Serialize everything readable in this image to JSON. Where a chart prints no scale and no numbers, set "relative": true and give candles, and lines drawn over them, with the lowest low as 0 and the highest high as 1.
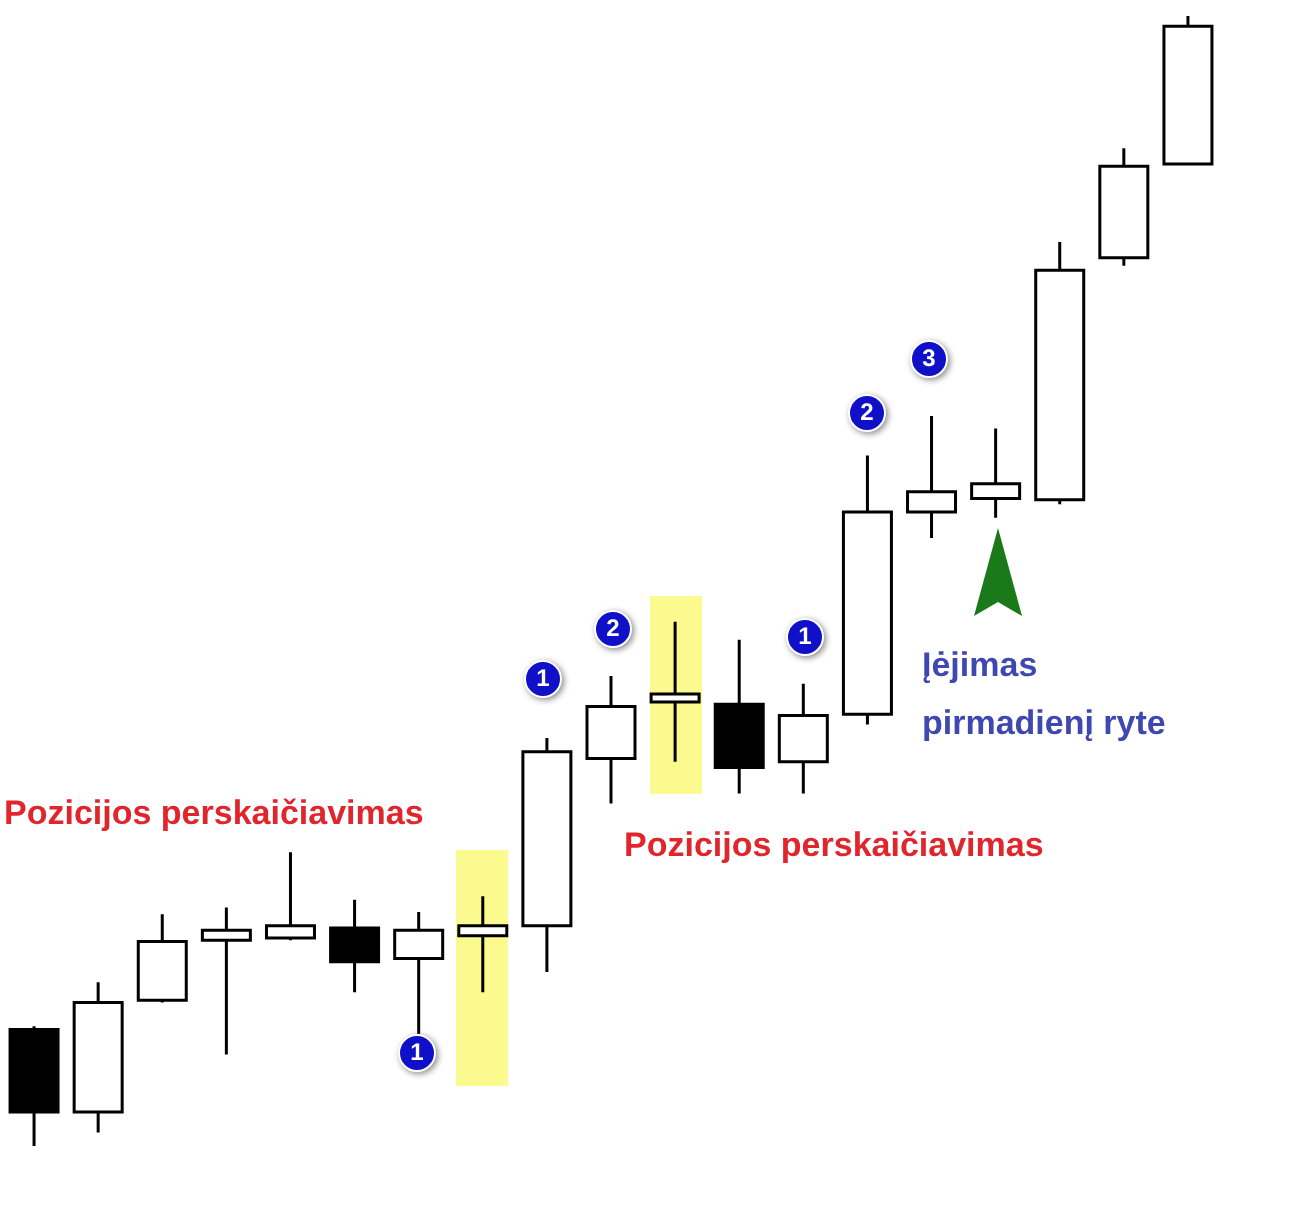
{
  "chart_data": {
    "type": "candlestick",
    "relative": true,
    "categories": [
      null,
      null,
      null,
      null,
      null,
      null,
      null,
      null,
      null,
      null,
      null,
      null,
      null,
      null,
      null,
      null,
      null,
      null,
      null
    ],
    "ohlc": [
      [
        0.103,
        0.106,
        0,
        0.03
      ],
      [
        0.03,
        0.145,
        0.012,
        0.127
      ],
      [
        0.129,
        0.205,
        0.127,
        0.181
      ],
      [
        0.182,
        0.211,
        0.081,
        0.191
      ],
      [
        0.184,
        0.26,
        0.182,
        0.195
      ],
      [
        0.193,
        0.218,
        0.136,
        0.163
      ],
      [
        0.166,
        0.207,
        0.099,
        0.191
      ],
      [
        0.186,
        0.221,
        0.136,
        0.195
      ],
      [
        0.195,
        0.361,
        0.154,
        0.349
      ],
      [
        0.343,
        0.416,
        0.303,
        0.389
      ],
      [
        0.393,
        0.464,
        0.34,
        0.4
      ],
      [
        0.391,
        0.448,
        0.312,
        0.335
      ],
      [
        0.34,
        0.409,
        0.312,
        0.381
      ],
      [
        0.382,
        0.611,
        0.373,
        0.561
      ],
      [
        0.561,
        0.646,
        0.538,
        0.579
      ],
      [
        0.573,
        0.635,
        0.556,
        0.586
      ],
      [
        0.572,
        0.8,
        0.568,
        0.775
      ],
      [
        0.786,
        0.883,
        0.779,
        0.867
      ],
      [
        0.869,
        1,
        0.869,
        0.991
      ]
    ],
    "annotations": [
      "Pozicijos perskaičiavimas",
      "Pozicijos perskaičiavimas",
      "Įėjimas pirmadienį ryte",
      "1",
      "1",
      "2",
      "1",
      "2",
      "3"
    ]
  }
}
